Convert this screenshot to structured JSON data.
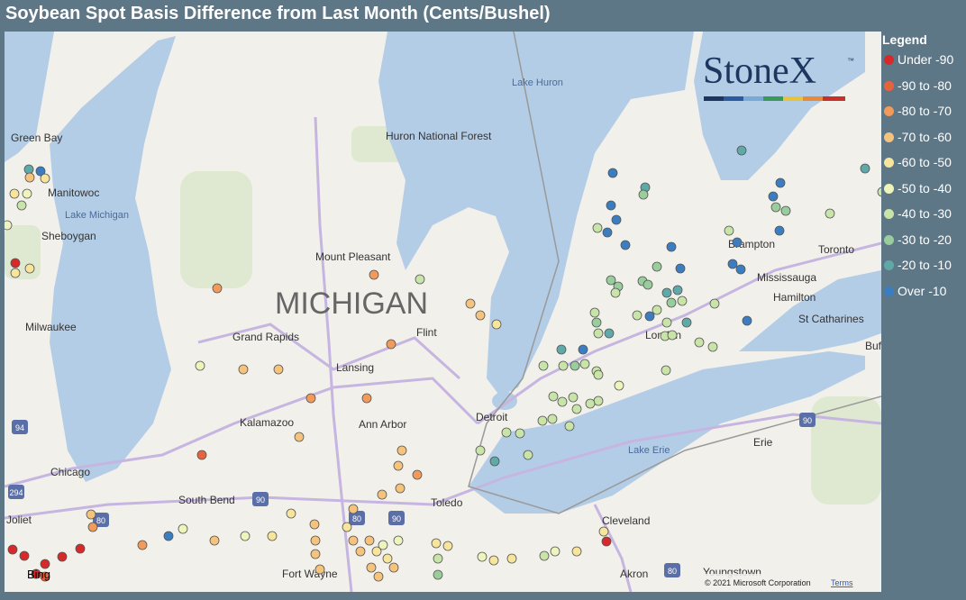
{
  "header": {
    "title": "Soybean Spot Basis Difference from Last Month (Cents/Bushel)"
  },
  "legend": {
    "title": "Legend",
    "items": [
      {
        "label": "Under -90",
        "color": "#d7282a"
      },
      {
        "label": "-90 to -80",
        "color": "#e8623e"
      },
      {
        "label": "-80 to -70",
        "color": "#f19a5c"
      },
      {
        "label": "-70 to -60",
        "color": "#f6c37c"
      },
      {
        "label": "-60 to -50",
        "color": "#f8e59c"
      },
      {
        "label": "-50 to -40",
        "color": "#eef4bc"
      },
      {
        "label": "-40 to -30",
        "color": "#c8e4a8"
      },
      {
        "label": "-30 to -20",
        "color": "#99cd9b"
      },
      {
        "label": "-20 to -10",
        "color": "#5fa9a9"
      },
      {
        "label": "Over -10",
        "color": "#3a7dc1"
      }
    ]
  },
  "logo": {
    "text": "StoneX",
    "mark": "™"
  },
  "map": {
    "labels": [
      "Lake Huron",
      "Huron National Forest",
      "Green Bay",
      "Manitowoc",
      "Lake Michigan",
      "Sheboygan",
      "Milwaukee",
      "Mount Pleasant",
      "MICHIGAN",
      "Grand Rapids",
      "Flint",
      "Lansing",
      "Kalamazoo",
      "Ann Arbor",
      "Detroit",
      "London",
      "Brampton",
      "Toronto",
      "Mississauga",
      "Hamilton",
      "St Catharines",
      "Lake Erie",
      "Erie",
      "Chicago",
      "South Bend",
      "Toledo",
      "Joliet",
      "Fort Wayne",
      "Cleveland",
      "Akron",
      "Youngstown",
      "Buf"
    ],
    "shields": [
      "94",
      "294",
      "90",
      "80",
      "90",
      "80",
      "90",
      "80"
    ],
    "attribution": "© 2021 Microsoft Corporation",
    "terms": "Terms",
    "provider": "Bing"
  }
}
